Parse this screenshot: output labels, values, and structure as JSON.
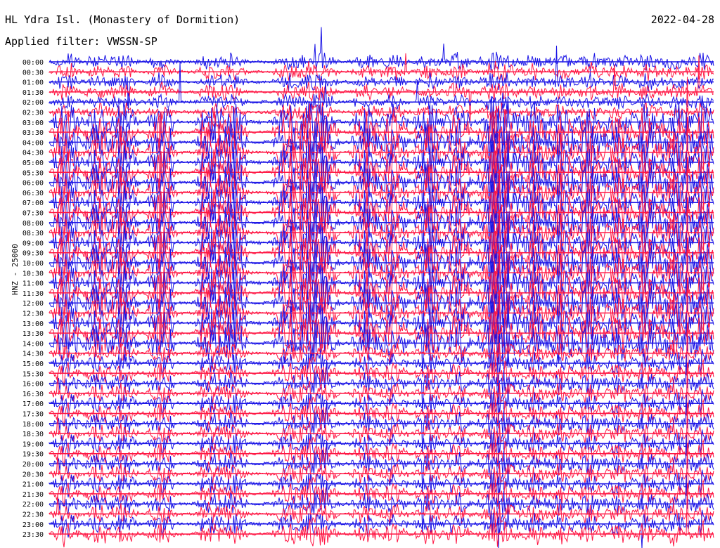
{
  "header": {
    "station": "HL Ydra Isl. (Monastery of Dormition)",
    "date": "2022-04-28",
    "filter": "Applied filter: VWSSN-SP"
  },
  "y_axis_label": "HNZ - 25000",
  "colors": {
    "trace_a": "#1a14e6",
    "trace_b": "#ff1744"
  },
  "chart_data": {
    "type": "line",
    "kind": "helicorder",
    "time_labels": [
      "00:00",
      "00:30",
      "01:00",
      "01:30",
      "02:00",
      "02:30",
      "03:00",
      "03:30",
      "04:00",
      "04:30",
      "05:00",
      "05:30",
      "06:00",
      "06:30",
      "07:00",
      "07:30",
      "08:00",
      "08:30",
      "09:00",
      "09:30",
      "10:00",
      "10:30",
      "11:00",
      "11:30",
      "12:00",
      "12:30",
      "13:00",
      "13:30",
      "14:00",
      "14:30",
      "15:00",
      "15:30",
      "16:00",
      "16:30",
      "17:00",
      "17:30",
      "18:00",
      "18:30",
      "19:00",
      "19:30",
      "20:00",
      "20:30",
      "21:00",
      "21:30",
      "22:00",
      "22:30",
      "23:00",
      "23:30"
    ],
    "series_colors": [
      "#1a14e6",
      "#ff1744"
    ]
  }
}
